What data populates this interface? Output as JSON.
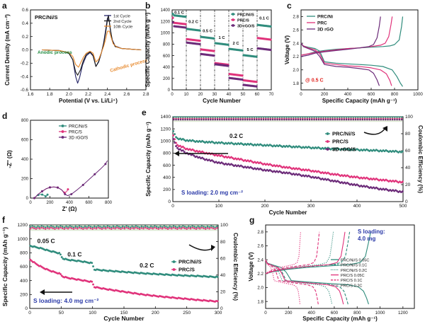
{
  "colors": {
    "teal": "#2f8c7c",
    "pink": "#e0327a",
    "purple": "#6b2a78",
    "black": "#1a1a1a",
    "navy": "#222266",
    "orange": "#e7892d",
    "green_text": "#1f8a3f",
    "blue_text": "#2b3aa8",
    "red_text": "#e0201b",
    "bar_band": "#c7d9b8",
    "arrow": "#111111"
  },
  "chart_data": [
    {
      "panel": "a",
      "type": "line",
      "xlabel": "Potential (V vs. Li/Li⁺)",
      "ylabel": "Current Density (mA cm⁻²)",
      "xlim": [
        1.6,
        2.8
      ],
      "ylim": [
        -0.6,
        0.6
      ],
      "xticks": [
        "1.6",
        "1.8",
        "2.0",
        "2.2",
        "2.4",
        "2.6",
        "2.8"
      ],
      "yticks": [
        "-0.6",
        "-0.4",
        "-0.2",
        "0.0",
        "0.2",
        "0.4",
        "0.6"
      ],
      "label_text": "PRC/Ni/S",
      "annotations": [
        "Anodic process",
        "Cathodic process"
      ],
      "series": [
        {
          "name": "1st Cycle",
          "color": "navy",
          "x": [
            1.72,
            1.9,
            2.0,
            2.04,
            2.07,
            2.09,
            2.11,
            2.14,
            2.18,
            2.22,
            2.25,
            2.28,
            2.31,
            2.34,
            2.36,
            2.38,
            2.4,
            2.42,
            2.43,
            2.45,
            2.48,
            2.55,
            2.65,
            2.75
          ],
          "y": [
            0.0,
            -0.01,
            -0.05,
            -0.15,
            -0.4,
            -0.5,
            -0.42,
            -0.23,
            -0.09,
            -0.04,
            -0.09,
            -0.25,
            -0.18,
            -0.03,
            0.1,
            0.28,
            0.48,
            0.42,
            0.3,
            0.15,
            0.06,
            0.02,
            0.01,
            0.0
          ]
        },
        {
          "name": "2nd Cycle",
          "color": "black",
          "x": [
            1.72,
            1.9,
            2.0,
            2.04,
            2.07,
            2.09,
            2.12,
            2.15,
            2.18,
            2.22,
            2.25,
            2.28,
            2.31,
            2.34,
            2.36,
            2.38,
            2.4,
            2.41,
            2.43,
            2.45,
            2.48,
            2.55,
            2.65,
            2.75
          ],
          "y": [
            0.0,
            -0.01,
            -0.05,
            -0.15,
            -0.33,
            -0.38,
            -0.3,
            -0.16,
            -0.07,
            -0.03,
            -0.08,
            -0.25,
            -0.17,
            -0.03,
            0.08,
            0.24,
            0.45,
            0.52,
            0.32,
            0.14,
            0.05,
            0.02,
            0.01,
            0.0
          ]
        },
        {
          "name": "10th Cycle",
          "color": "orange",
          "x": [
            1.72,
            1.9,
            2.0,
            2.04,
            2.07,
            2.1,
            2.12,
            2.15,
            2.18,
            2.22,
            2.25,
            2.28,
            2.31,
            2.34,
            2.36,
            2.38,
            2.4,
            2.42,
            2.44,
            2.46,
            2.5,
            2.55,
            2.65,
            2.75
          ],
          "y": [
            0.0,
            -0.01,
            -0.04,
            -0.1,
            -0.22,
            -0.26,
            -0.2,
            -0.11,
            -0.05,
            -0.02,
            -0.05,
            -0.18,
            -0.14,
            -0.03,
            0.05,
            0.15,
            0.28,
            0.28,
            0.18,
            0.09,
            0.04,
            0.02,
            0.01,
            0.0
          ]
        }
      ]
    },
    {
      "panel": "b",
      "type": "scatter",
      "xlabel": "Cycle Number",
      "ylabel": "Specific Capacity (mAh g⁻¹)",
      "xlim": [
        0,
        70
      ],
      "ylim": [
        0,
        1400
      ],
      "xticks": [
        "0",
        "10",
        "20",
        "30",
        "40",
        "50",
        "60",
        "70"
      ],
      "yticks": [
        "0",
        "200",
        "400",
        "600",
        "800",
        "1000",
        "1200",
        "1400"
      ],
      "dividers": [
        10,
        20,
        30,
        40,
        50,
        60
      ],
      "rate_labels": [
        "0.1 C",
        "0.2 C",
        "0.5 C",
        "1 C",
        "2 C",
        "5 C",
        "0.1 C"
      ],
      "segments": [
        {
          "from": 1,
          "to": 10
        },
        {
          "from": 11,
          "to": 20
        },
        {
          "from": 21,
          "to": 30
        },
        {
          "from": 31,
          "to": 40
        },
        {
          "from": 41,
          "to": 50
        },
        {
          "from": 51,
          "to": 60
        },
        {
          "from": 61,
          "to": 70
        }
      ],
      "series": [
        {
          "name": "PRC/Ni/S",
          "color": "teal",
          "first": 1330,
          "levels": [
            1280,
            1040,
            900,
            790,
            690,
            580,
            1110
          ]
        },
        {
          "name": "PRC/S",
          "color": "pink",
          "first": 1260,
          "levels": [
            1150,
            860,
            680,
            440,
            250,
            140,
            880
          ]
        },
        {
          "name": "3D rGO/S",
          "color": "purple",
          "first": 1180,
          "levels": [
            1090,
            800,
            600,
            420,
            180,
            60,
            700
          ]
        }
      ]
    },
    {
      "panel": "c",
      "type": "line",
      "xlabel": "Specific Capacity (mAh g⁻¹)",
      "ylabel": "Voltage (V)",
      "xlim": [
        0,
        1000
      ],
      "ylim": [
        1.7,
        2.9
      ],
      "xticks": [
        "0",
        "200",
        "400",
        "600",
        "800",
        "1000"
      ],
      "yticks": [
        "1.8",
        "2.0",
        "2.2",
        "2.4",
        "2.6",
        "2.8"
      ],
      "rate_label": "@ 0.5 C",
      "series": [
        {
          "name": "PRC/Ni",
          "color": "teal",
          "x": [
            0,
            20,
            60,
            120,
            160,
            200,
            300,
            400,
            500,
            600,
            700,
            780,
            820,
            850,
            870
          ],
          "y": [
            2.4,
            2.36,
            2.34,
            2.32,
            2.28,
            2.12,
            2.1,
            2.09,
            2.08,
            2.07,
            2.05,
            2.0,
            1.9,
            1.8,
            1.75
          ],
          "x2": [
            0,
            60,
            120,
            200,
            300,
            400,
            500,
            600,
            700,
            760,
            800,
            840,
            860,
            870
          ],
          "y2": [
            2.22,
            2.24,
            2.27,
            2.29,
            2.31,
            2.32,
            2.33,
            2.34,
            2.35,
            2.36,
            2.38,
            2.45,
            2.65,
            2.8
          ]
        },
        {
          "name": "PRC",
          "color": "pink",
          "x": [
            0,
            20,
            60,
            120,
            160,
            200,
            300,
            400,
            500,
            600,
            680,
            730,
            760,
            775
          ],
          "y": [
            2.4,
            2.36,
            2.33,
            2.3,
            2.24,
            2.1,
            2.08,
            2.06,
            2.05,
            2.03,
            2.0,
            1.94,
            1.84,
            1.76
          ],
          "x2": [
            0,
            60,
            120,
            200,
            300,
            400,
            500,
            600,
            680,
            720,
            750,
            770,
            780
          ],
          "y2": [
            2.22,
            2.24,
            2.26,
            2.28,
            2.3,
            2.32,
            2.33,
            2.35,
            2.37,
            2.4,
            2.5,
            2.68,
            2.8
          ]
        },
        {
          "name": "3D rGO",
          "color": "purple",
          "x": [
            0,
            20,
            60,
            120,
            160,
            200,
            300,
            400,
            500,
            580,
            620,
            650,
            670
          ],
          "y": [
            2.4,
            2.35,
            2.32,
            2.28,
            2.2,
            2.08,
            2.05,
            2.04,
            2.02,
            2.0,
            1.95,
            1.85,
            1.76
          ],
          "x2": [
            0,
            60,
            120,
            200,
            300,
            400,
            500,
            580,
            620,
            650,
            670,
            680
          ],
          "y2": [
            2.2,
            2.22,
            2.25,
            2.27,
            2.29,
            2.31,
            2.33,
            2.35,
            2.38,
            2.48,
            2.66,
            2.8
          ]
        }
      ]
    },
    {
      "panel": "d",
      "type": "line",
      "xlabel": "Z' (Ω)",
      "ylabel": "-Z'' (Ω)",
      "xlim": [
        0,
        800
      ],
      "ylim": [
        0,
        800
      ],
      "xticks": [
        "0",
        "200",
        "400",
        "600",
        "800"
      ],
      "yticks": [
        "0",
        "200",
        "400",
        "600",
        "800"
      ],
      "series": [
        {
          "name": "PRC/Ni/S",
          "color": "teal",
          "x": [
            40,
            60,
            80,
            100,
            120,
            140,
            155,
            165,
            175
          ],
          "y": [
            0,
            20,
            32,
            38,
            36,
            28,
            18,
            22,
            35
          ]
        },
        {
          "name": "PRC/S",
          "color": "pink",
          "x": [
            40,
            80,
            120,
            160,
            200,
            240,
            280,
            320,
            350,
            370,
            385
          ],
          "y": [
            0,
            40,
            70,
            95,
            110,
            115,
            108,
            85,
            55,
            65,
            90
          ]
        },
        {
          "name": "3D rGO/S",
          "color": "purple",
          "x": [
            40,
            80,
            120,
            160,
            200,
            240,
            280,
            320,
            355,
            380,
            420,
            480,
            540,
            600,
            660,
            720,
            770,
            790
          ],
          "y": [
            0,
            40,
            70,
            95,
            110,
            115,
            108,
            85,
            40,
            25,
            40,
            85,
            135,
            190,
            245,
            300,
            350,
            385
          ]
        }
      ]
    },
    {
      "panel": "e",
      "type": "scatter",
      "xlabel": "Cycle Number",
      "ylabel": "Specific Capacity (mAh g⁻¹)",
      "y2label": "Coulombic Efficiency (%)",
      "xlim": [
        0,
        500
      ],
      "ylim": [
        0,
        1400
      ],
      "y2lim": [
        0,
        100
      ],
      "xticks": [
        "0",
        "100",
        "200",
        "300",
        "400",
        "500"
      ],
      "yticks": [
        "0",
        "200",
        "400",
        "600",
        "800",
        "1000",
        "1200",
        "1400"
      ],
      "y2ticks": [
        "0",
        "20",
        "40",
        "60",
        "80",
        "100"
      ],
      "rate_label": "0.2 C",
      "loading_label": "S loading: 2.0 mg cm⁻²",
      "series": [
        {
          "name": "PRC/Ni/S",
          "color": "teal",
          "x": [
            1,
            10,
            30,
            60,
            100,
            150,
            200,
            250,
            300,
            350,
            400,
            450,
            500
          ],
          "y": [
            1150,
            1040,
            1010,
            990,
            970,
            950,
            930,
            910,
            890,
            870,
            855,
            840,
            820
          ]
        },
        {
          "name": "PRC/S",
          "color": "pink",
          "x": [
            1,
            10,
            30,
            60,
            100,
            150,
            200,
            250,
            300,
            350,
            400,
            450,
            500
          ],
          "y": [
            1080,
            930,
            870,
            820,
            760,
            690,
            620,
            560,
            510,
            450,
            400,
            360,
            320
          ]
        },
        {
          "name": "3D rGO/S",
          "color": "purple",
          "x": [
            1,
            10,
            30,
            60,
            100,
            150,
            200,
            250,
            300,
            350,
            400,
            450,
            500
          ],
          "y": [
            1020,
            880,
            800,
            720,
            640,
            580,
            520,
            470,
            410,
            340,
            270,
            210,
            160
          ]
        }
      ],
      "ce_series": [
        {
          "name": "PRC/Ni/S CE",
          "color": "teal",
          "value": 99
        },
        {
          "name": "PRC/S CE",
          "color": "pink",
          "value": 97
        },
        {
          "name": "3D rGO/S CE",
          "color": "purple",
          "value": 96
        }
      ]
    },
    {
      "panel": "f",
      "type": "scatter",
      "xlabel": "Cycle Number",
      "ylabel": "Specific Capacity (mAh g⁻¹)",
      "y2label": "Coulombic Efficiency (%)",
      "xlim": [
        0,
        300
      ],
      "ylim": [
        0,
        1200
      ],
      "y2lim": [
        0,
        100
      ],
      "xticks": [
        "0",
        "50",
        "100",
        "150",
        "200",
        "250",
        "300"
      ],
      "yticks": [
        "0",
        "200",
        "400",
        "600",
        "800",
        "1000",
        "1200"
      ],
      "y2ticks": [
        "0",
        "20",
        "40",
        "60",
        "80",
        "100"
      ],
      "rate_labels": [
        "0.05 C",
        "0.1 C",
        "0.2 C"
      ],
      "loading_label": "S loading: 4.0 mg cm⁻²",
      "series": [
        {
          "name": "PRC/Ni/S",
          "color": "teal",
          "x": [
            1,
            10,
            20,
            30,
            40,
            48,
            52,
            60,
            80,
            100,
            102,
            120,
            150,
            180,
            210,
            240,
            270,
            300
          ],
          "y": [
            900,
            880,
            860,
            830,
            810,
            790,
            720,
            700,
            680,
            650,
            560,
            545,
            525,
            505,
            490,
            475,
            465,
            450
          ]
        },
        {
          "name": "PRC/S",
          "color": "pink",
          "x": [
            1,
            10,
            20,
            30,
            40,
            48,
            52,
            60,
            80,
            100,
            102,
            120,
            150,
            180,
            210,
            240,
            270,
            300
          ],
          "y": [
            700,
            640,
            590,
            550,
            520,
            500,
            460,
            440,
            410,
            380,
            310,
            280,
            240,
            200,
            170,
            145,
            120,
            100
          ]
        }
      ],
      "ce_series": [
        {
          "name": "PRC/Ni/S CE",
          "color": "teal",
          "value": 98
        },
        {
          "name": "PRC/S CE",
          "color": "pink",
          "value": 96
        }
      ]
    },
    {
      "panel": "g",
      "type": "line",
      "xlabel": "Specific Capacity (mAh g⁻¹)",
      "ylabel": "Voltage (V)",
      "xlim": [
        0,
        1300
      ],
      "ylim": [
        1.7,
        2.9
      ],
      "xticks": [
        "0",
        "200",
        "400",
        "600",
        "800",
        "1000",
        "1200"
      ],
      "yticks": [
        "1.8",
        "2.0",
        "2.2",
        "2.4",
        "2.6",
        "2.8"
      ],
      "loading_label": "S loading:\n4.0 mg",
      "series": [
        {
          "name": "PRC/Ni/S 0.05C",
          "color": "teal",
          "dash": "solid",
          "capacity": 900
        },
        {
          "name": "PRC/Ni/S 0.1C",
          "color": "teal",
          "dash": "dash",
          "capacity": 720
        },
        {
          "name": "PRC/Ni/S 0.2C",
          "color": "teal",
          "dash": "dot",
          "capacity": 580
        },
        {
          "name": "PRC/S 0.05C",
          "color": "pink",
          "dash": "solid",
          "capacity": 680
        },
        {
          "name": "PRC/S 0.1C",
          "color": "pink",
          "dash": "dash",
          "capacity": 460
        },
        {
          "name": "PRC/S 0.2C",
          "color": "pink",
          "dash": "dot",
          "capacity": 300
        }
      ]
    }
  ]
}
